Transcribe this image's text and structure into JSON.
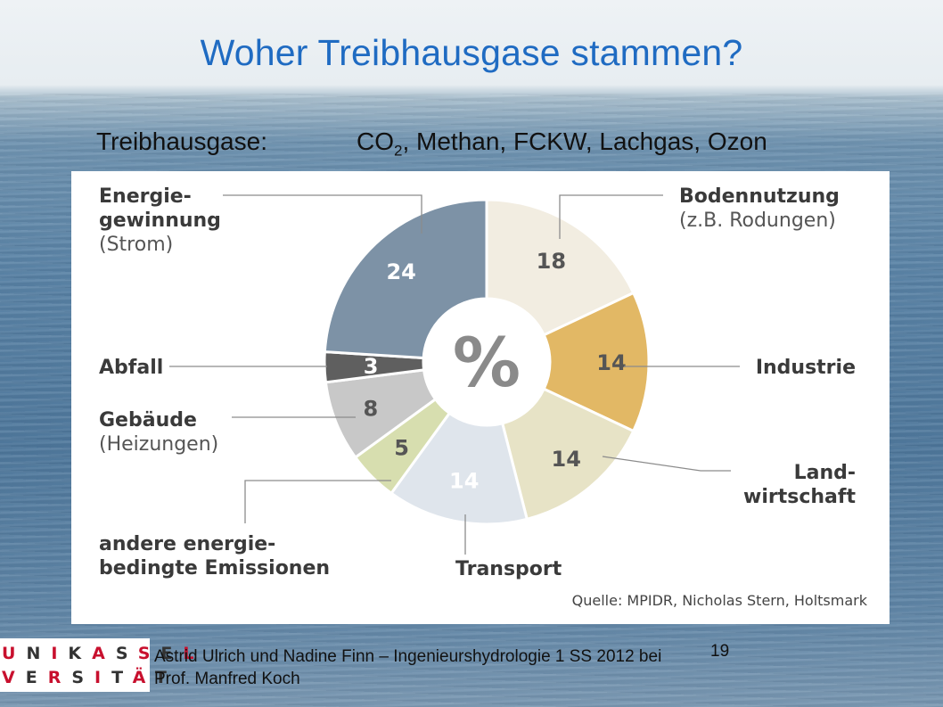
{
  "slide": {
    "title": "Woher Treibhausgase stammen?",
    "gases_label": "Treibhausgase:",
    "gases_co2_base": "CO",
    "gases_co2_sub": "2",
    "gases_rest": ", Methan, FCKW, Lachgas, Ozon",
    "footer_line1": "Astrid Ulrich und Nadine Finn – Ingenieurshydrologie 1 SS 2012 bei",
    "footer_line2": "Prof. Manfred Koch",
    "page_number": "19",
    "logo_line1": "UNIKASSEL",
    "logo_line2": "VERSITÄT"
  },
  "chart_data": {
    "type": "pie",
    "center_label": "%",
    "source": "Quelle: MPIDR, Nicholas Stern, Holtsmark",
    "slices": [
      {
        "label": "Bodennutzung",
        "sublabel": "(z.B. Rodungen)",
        "value": 18,
        "color": "#f2ede1"
      },
      {
        "label": "Industrie",
        "sublabel": "",
        "value": 14,
        "color": "#e2b865"
      },
      {
        "label": "Land-wirtschaft",
        "sublabel": "",
        "value": 14,
        "color": "#e7e3c6"
      },
      {
        "label": "Transport",
        "sublabel": "",
        "value": 14,
        "color": "#dfe5ec"
      },
      {
        "label": "andere energie-bedingte Emissionen",
        "sublabel": "",
        "value": 5,
        "color": "#d7deaf"
      },
      {
        "label": "Gebäude",
        "sublabel": "(Heizungen)",
        "value": 8,
        "color": "#c8c8c8"
      },
      {
        "label": "Abfall",
        "sublabel": "",
        "value": 3,
        "color": "#5f5f5f"
      },
      {
        "label": "Energie-gewinnung",
        "sublabel": "(Strom)",
        "value": 24,
        "color": "#7d92a6"
      }
    ]
  }
}
